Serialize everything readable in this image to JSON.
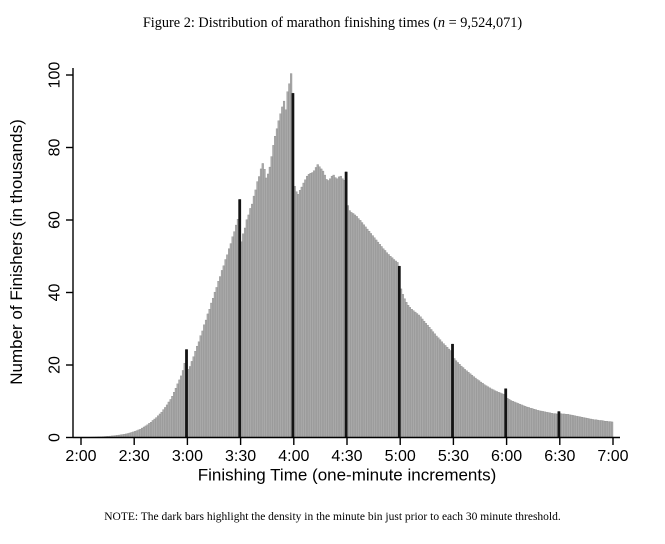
{
  "figure": {
    "title_prefix": "Figure 2: Distribution of marathon finishing times (",
    "title_var": "n",
    "title_suffix": " = 9,524,071)"
  },
  "note": {
    "text": "NOTE: The dark bars highlight the density in the minute bin just prior to each 30 minute threshold."
  },
  "chart_data": {
    "type": "bar",
    "subtype": "histogram",
    "title": "Figure 2: Distribution of marathon finishing times (n = 9,524,071)",
    "xlabel": "Finishing Time (one-minute increments)",
    "ylabel": "Number of Finishers (in thousands)",
    "x_tick_labels": [
      "2:00",
      "2:30",
      "3:00",
      "3:30",
      "4:00",
      "4:30",
      "5:00",
      "5:30",
      "6:00",
      "6:30",
      "7:00"
    ],
    "y_ticks": [
      0,
      20,
      40,
      60,
      80,
      100
    ],
    "ylim": [
      0,
      105
    ],
    "xlim_minutes": [
      120,
      420
    ],
    "start_minute": 120,
    "bin_width_minutes": 1,
    "grid": false,
    "legend": "none",
    "values_thousands": [
      0.05,
      0.06,
      0.07,
      0.08,
      0.09,
      0.1,
      0.12,
      0.13,
      0.15,
      0.17,
      0.2,
      0.22,
      0.25,
      0.28,
      0.32,
      0.35,
      0.39,
      0.44,
      0.49,
      0.55,
      0.6,
      0.67,
      0.74,
      0.82,
      0.9,
      1.0,
      1.1,
      1.25,
      1.4,
      1.55,
      1.7,
      1.9,
      2.1,
      2.3,
      2.6,
      2.9,
      3.2,
      3.5,
      3.9,
      4.2,
      4.7,
      5.1,
      5.5,
      6.0,
      6.5,
      7.0,
      7.7,
      8.3,
      9.0,
      9.8,
      10.5,
      11.4,
      12.5,
      13.6,
      14.8,
      15.9,
      17.0,
      18.5,
      20.5,
      24.3,
      18.8,
      19.6,
      21.0,
      22.3,
      23.8,
      25.2,
      26.4,
      28.1,
      29.4,
      31.1,
      32.4,
      34.1,
      35.4,
      37.1,
      38.4,
      40.1,
      41.4,
      43.1,
      44.4,
      46.1,
      47.4,
      49.1,
      50.4,
      52.1,
      53.5,
      55.4,
      56.8,
      58.6,
      60.2,
      65.7,
      54.0,
      56.2,
      57.8,
      60.1,
      61.4,
      63.2,
      64.4,
      66.6,
      68.3,
      70.6,
      72.0,
      74.1,
      75.6,
      74.0,
      71.6,
      72.7,
      74.6,
      77.5,
      80.6,
      83.1,
      85.2,
      87.4,
      89.3,
      91.2,
      92.8,
      90.4,
      95.4,
      97.6,
      100.4,
      95.0,
      69.3,
      67.8,
      67.1,
      68.2,
      69.1,
      70.2,
      71.1,
      72.1,
      72.6,
      72.9,
      73.1,
      73.6,
      74.5,
      75.3,
      74.7,
      74.1,
      73.5,
      72.4,
      71.2,
      70.9,
      71.4,
      72.1,
      72.4,
      71.7,
      71.4,
      71.9,
      72.1,
      71.4,
      71.0,
      73.3,
      64.0,
      62.6,
      62.1,
      61.8,
      61.4,
      61.0,
      60.4,
      59.9,
      59.3,
      58.7,
      58.1,
      57.5,
      56.9,
      56.3,
      55.7,
      55.1,
      54.5,
      53.9,
      53.3,
      52.7,
      52.1,
      51.6,
      51.0,
      50.5,
      50.0,
      49.6,
      49.1,
      48.7,
      48.3,
      47.3,
      41.0,
      39.5,
      38.3,
      37.3,
      36.5,
      35.9,
      35.4,
      35.0,
      34.6,
      34.2,
      33.8,
      33.3,
      32.7,
      32.1,
      31.5,
      31.0,
      30.4,
      29.8,
      29.2,
      28.6,
      28.0,
      27.5,
      27.0,
      26.4,
      25.9,
      25.4,
      24.9,
      24.4,
      24.0,
      25.8,
      21.8,
      21.2,
      20.7,
      20.2,
      19.7,
      19.3,
      18.8,
      18.4,
      18.0,
      17.6,
      17.2,
      16.8,
      16.4,
      16.0,
      15.7,
      15.3,
      15.0,
      14.6,
      14.3,
      14.0,
      13.7,
      13.4,
      13.2,
      12.9,
      12.7,
      12.5,
      12.3,
      12.1,
      11.9,
      13.5,
      10.8,
      10.5,
      10.2,
      10.0,
      9.8,
      9.6,
      9.4,
      9.2,
      9.0,
      8.8,
      8.6,
      8.4,
      8.3,
      8.1,
      8.0,
      7.8,
      7.7,
      7.5,
      7.4,
      7.3,
      7.2,
      7.1,
      7.0,
      6.9,
      6.8,
      6.7,
      6.6,
      6.6,
      6.5,
      7.2,
      6.6,
      6.5,
      6.5,
      6.4,
      6.4,
      6.3,
      6.2,
      6.1,
      6.0,
      5.9,
      5.8,
      5.7,
      5.6,
      5.5,
      5.4,
      5.3,
      5.2,
      5.1,
      5.0,
      4.9,
      4.9,
      4.8,
      4.7,
      4.7,
      4.6,
      4.5,
      4.5,
      4.4,
      4.4,
      4.3
    ],
    "highlight_minutes": [
      179,
      209,
      239,
      269,
      299,
      329,
      359,
      389
    ],
    "highlight_times": [
      "2:59",
      "3:29",
      "3:59",
      "4:29",
      "4:59",
      "5:29",
      "5:59",
      "6:29"
    ],
    "highlight_values_thousands": [
      24.3,
      65.7,
      95.0,
      73.3,
      47.3,
      25.8,
      13.5,
      7.2
    ],
    "colors": {
      "bar_fill": "#a9a9a9",
      "bar_outline": "#8a8a8a",
      "highlight": "#141414",
      "axis": "#000000",
      "background": "#ffffff"
    }
  }
}
